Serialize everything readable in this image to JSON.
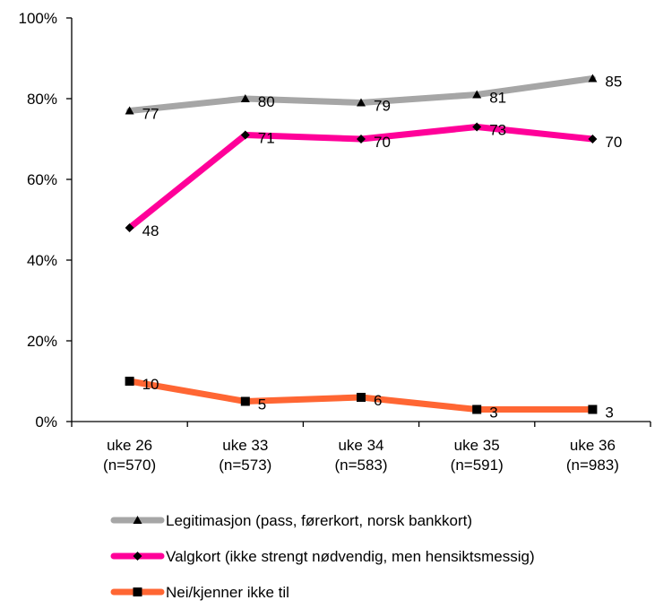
{
  "chart_data": {
    "type": "line",
    "categories": [
      [
        "uke 26",
        "(n=570)"
      ],
      [
        "uke 33",
        "(n=573)"
      ],
      [
        "uke 34",
        "(n=583)"
      ],
      [
        "uke 35",
        "(n=591)"
      ],
      [
        "uke 36",
        "(n=983)"
      ]
    ],
    "ylim": [
      0,
      100
    ],
    "yticks": [
      0,
      20,
      40,
      60,
      80,
      100
    ],
    "ytick_labels": [
      "0%",
      "20%",
      "40%",
      "60%",
      "80%",
      "100%"
    ],
    "grid": false,
    "legend_position": "bottom",
    "series": [
      {
        "name": "Legitimasjon (pass, førerkort, norsk bankkort)",
        "values": [
          77,
          80,
          79,
          81,
          85
        ],
        "labels": [
          "77",
          "80",
          "79",
          "81",
          "85"
        ],
        "color": "#a6a6a6",
        "marker": "triangle"
      },
      {
        "name": "Valgkort (ikke strengt nødvendig, men hensiktsmessig)",
        "values": [
          48,
          71,
          70,
          73,
          70
        ],
        "labels": [
          "48",
          "71",
          "70",
          "73",
          "70"
        ],
        "color": "#ff0099",
        "marker": "diamond"
      },
      {
        "name": "Nei/kjenner ikke til",
        "values": [
          10,
          5,
          6,
          3,
          3
        ],
        "labels": [
          "10",
          "5",
          "6",
          "3",
          "3"
        ],
        "color": "#ff6633",
        "marker": "square"
      }
    ]
  }
}
